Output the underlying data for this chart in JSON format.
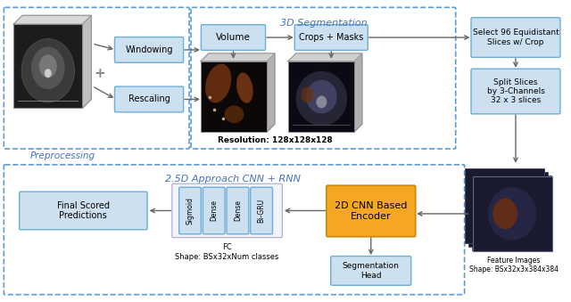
{
  "fig_width": 6.4,
  "fig_height": 3.39,
  "bg_color": "#ffffff",
  "box_fill_light": "#cce0f0",
  "box_fill_orange": "#f5a623",
  "box_stroke": "#6baed6",
  "dashed_border": "#5b9bd5",
  "arrow_color": "#666666",
  "title_color": "#4472c4",
  "preprocessing_label": "Preprocessing",
  "seg3d_label": "3D Segmentation",
  "cnn_rnn_label": "2.5D Approach CNN + RNN",
  "windowing_text": "Windowing",
  "rescaling_text": "Rescaling",
  "volume_text": "Volume",
  "crops_masks_text": "Crops + Masks",
  "select96_text": "Select 96 Equidistant\nSlices w/ Crop",
  "split_slices_text": "Split Slices\nby 3-Channels\n32 x 3 slices",
  "cnn_encoder_text": "2D CNN Based\nEncoder",
  "seg_head_text": "Segmentation\nHead",
  "final_pred_text": "Final Scored\nPredictions",
  "fc_label": "FC\nShape: BSx32xNum classes",
  "feature_images_label": "Feature Images\nShape: BSx32x3x384x384",
  "resolution_text": "Resolution: 128x128x128",
  "sigmoid_text": "Sigmoid",
  "dense1_text": "Dense",
  "dense2_text": "Dense",
  "bigru_text": "Bi-GRU"
}
